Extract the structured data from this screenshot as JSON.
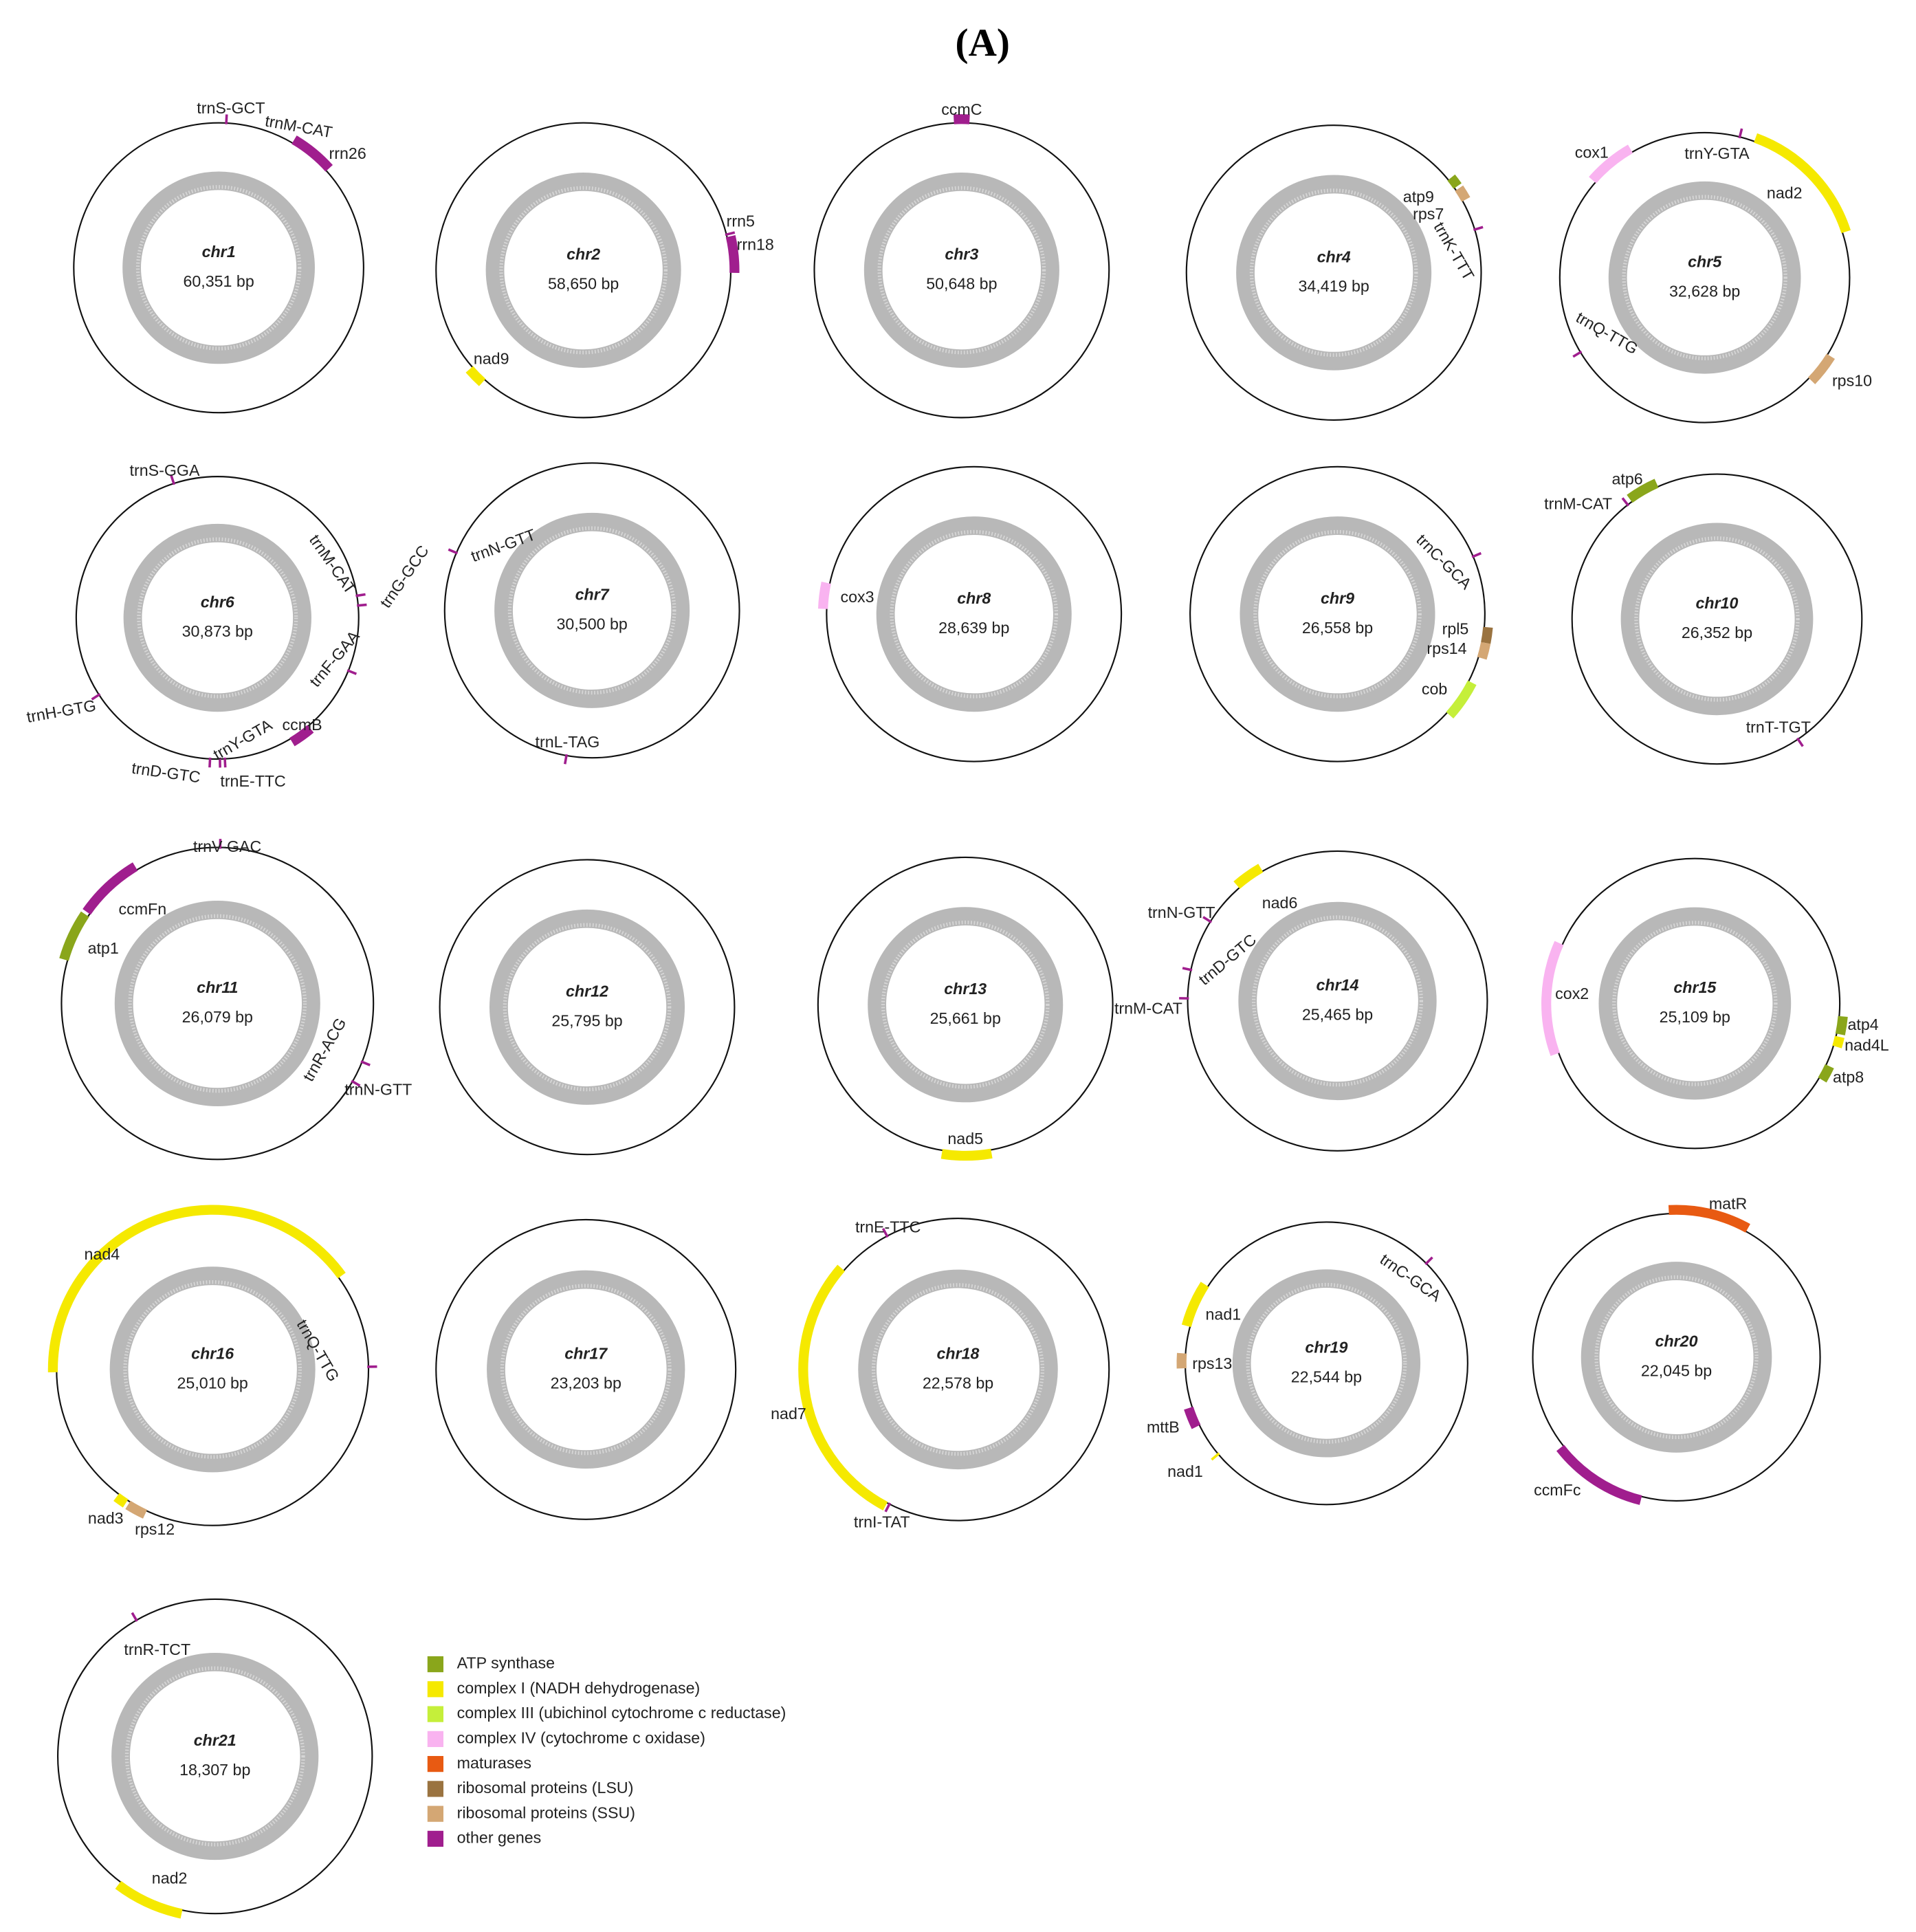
{
  "title": "(A)",
  "chromosomes": [
    {
      "name": "chr1",
      "size": "60,351 bp",
      "genes": [
        {
          "label": "trnS-GCT",
          "color": "#a01e8e"
        },
        {
          "label": "trnM-CAT",
          "color": "#a01e8e"
        },
        {
          "label": "rrn26",
          "color": "#a01e8e"
        }
      ]
    },
    {
      "name": "chr2",
      "size": "58,650 bp",
      "genes": [
        {
          "label": "rrn5",
          "color": "#a01e8e"
        },
        {
          "label": "rrn18",
          "color": "#a01e8e"
        },
        {
          "label": "nad9",
          "color": "#f5e900"
        }
      ]
    },
    {
      "name": "chr3",
      "size": "50,648 bp",
      "genes": [
        {
          "label": "ccmC",
          "color": "#a01e8e"
        }
      ]
    },
    {
      "name": "chr4",
      "size": "34,419 bp",
      "genes": [
        {
          "label": "atp9",
          "color": "#8aa61b"
        },
        {
          "label": "rps7",
          "color": "#d4a774"
        },
        {
          "label": "trnK-TTT",
          "color": "#a01e8e"
        }
      ]
    },
    {
      "name": "chr5",
      "size": "32,628 bp",
      "genes": [
        {
          "label": "cox1",
          "color": "#f9b3f0"
        },
        {
          "label": "trnY-GTA",
          "color": "#a01e8e"
        },
        {
          "label": "nad2",
          "color": "#f5e900"
        },
        {
          "label": "trnQ-TTG",
          "color": "#a01e8e"
        },
        {
          "label": "rps10",
          "color": "#d4a774"
        }
      ]
    },
    {
      "name": "chr6",
      "size": "30,873 bp",
      "genes": [
        {
          "label": "trnS-GGA",
          "color": "#a01e8e"
        },
        {
          "label": "trnM-CAT",
          "color": "#a01e8e"
        },
        {
          "label": "trnG-GCC",
          "color": "#a01e8e"
        },
        {
          "label": "trnF-GAA",
          "color": "#a01e8e"
        },
        {
          "label": "trnH-GTG",
          "color": "#a01e8e"
        },
        {
          "label": "trnY-GTA",
          "color": "#a01e8e"
        },
        {
          "label": "trnD-GTC",
          "color": "#a01e8e"
        },
        {
          "label": "trnE-TTC",
          "color": "#a01e8e"
        },
        {
          "label": "ccmB",
          "color": "#a01e8e"
        }
      ]
    },
    {
      "name": "chr7",
      "size": "30,500 bp",
      "genes": [
        {
          "label": "trnN-GTT",
          "color": "#a01e8e"
        },
        {
          "label": "trnL-TAG",
          "color": "#a01e8e"
        }
      ]
    },
    {
      "name": "chr8",
      "size": "28,639 bp",
      "genes": [
        {
          "label": "cox3",
          "color": "#f9b3f0"
        }
      ]
    },
    {
      "name": "chr9",
      "size": "26,558 bp",
      "genes": [
        {
          "label": "trnC-GCA",
          "color": "#a01e8e"
        },
        {
          "label": "rpl5",
          "color": "#9a7340"
        },
        {
          "label": "rps14",
          "color": "#d4a774"
        },
        {
          "label": "cob",
          "color": "#c5ef3a"
        }
      ]
    },
    {
      "name": "chr10",
      "size": "26,352 bp",
      "genes": [
        {
          "label": "trnM-CAT",
          "color": "#a01e8e"
        },
        {
          "label": "atp6",
          "color": "#8aa61b"
        },
        {
          "label": "trnT-TGT",
          "color": "#a01e8e"
        }
      ]
    },
    {
      "name": "chr11",
      "size": "26,079 bp",
      "genes": [
        {
          "label": "trnV-GAC",
          "color": "#a01e8e"
        },
        {
          "label": "ccmFn",
          "color": "#a01e8e"
        },
        {
          "label": "atp1",
          "color": "#8aa61b"
        },
        {
          "label": "trnR-ACG",
          "color": "#a01e8e"
        },
        {
          "label": "trnN-GTT",
          "color": "#a01e8e"
        }
      ]
    },
    {
      "name": "chr12",
      "size": "25,795 bp",
      "genes": []
    },
    {
      "name": "chr13",
      "size": "25,661 bp",
      "genes": [
        {
          "label": "nad5",
          "color": "#f5e900"
        }
      ]
    },
    {
      "name": "chr14",
      "size": "25,465 bp",
      "genes": [
        {
          "label": "nad6",
          "color": "#f5e900"
        },
        {
          "label": "trnN-GTT",
          "color": "#a01e8e"
        },
        {
          "label": "trnD-GTC",
          "color": "#a01e8e"
        },
        {
          "label": "trnM-CAT",
          "color": "#a01e8e"
        }
      ]
    },
    {
      "name": "chr15",
      "size": "25,109 bp",
      "genes": [
        {
          "label": "cox2",
          "color": "#f9b3f0"
        },
        {
          "label": "atp4",
          "color": "#8aa61b"
        },
        {
          "label": "nad4L",
          "color": "#f5e900"
        },
        {
          "label": "atp8",
          "color": "#8aa61b"
        }
      ]
    },
    {
      "name": "chr16",
      "size": "25,010 bp",
      "genes": [
        {
          "label": "nad4",
          "color": "#f5e900"
        },
        {
          "label": "trnQ-TTG",
          "color": "#a01e8e"
        },
        {
          "label": "nad3",
          "color": "#f5e900"
        },
        {
          "label": "rps12",
          "color": "#d4a774"
        }
      ]
    },
    {
      "name": "chr17",
      "size": "23,203 bp",
      "genes": []
    },
    {
      "name": "chr18",
      "size": "22,578 bp",
      "genes": [
        {
          "label": "trnE-TTC",
          "color": "#a01e8e"
        },
        {
          "label": "nad7",
          "color": "#f5e900"
        },
        {
          "label": "trnI-TAT",
          "color": "#a01e8e"
        }
      ]
    },
    {
      "name": "chr19",
      "size": "22,544 bp",
      "genes": [
        {
          "label": "trnC-GCA",
          "color": "#a01e8e"
        },
        {
          "label": "nad1",
          "color": "#f5e900"
        },
        {
          "label": "rps13",
          "color": "#d4a774"
        },
        {
          "label": "mttB",
          "color": "#a01e8e"
        },
        {
          "label": "nad1",
          "color": "#f5e900"
        }
      ]
    },
    {
      "name": "chr20",
      "size": "22,045 bp",
      "genes": [
        {
          "label": "matR",
          "color": "#e85a12"
        },
        {
          "label": "ccmFc",
          "color": "#a01e8e"
        }
      ]
    },
    {
      "name": "chr21",
      "size": "18,307 bp",
      "genes": [
        {
          "label": "trnR-TCT",
          "color": "#a01e8e"
        },
        {
          "label": "nad2",
          "color": "#f5e900"
        }
      ]
    }
  ],
  "legend": [
    {
      "label": "ATP synthase",
      "color": "#8aa61b"
    },
    {
      "label": "complex I (NADH dehydrogenase)",
      "color": "#f5e900"
    },
    {
      "label": "complex III (ubichinol cytochrome c reductase)",
      "color": "#c5ef3a"
    },
    {
      "label": "complex IV (cytochrome c oxidase)",
      "color": "#f9b3f0"
    },
    {
      "label": "maturases",
      "color": "#e85a12"
    },
    {
      "label": "ribosomal proteins (LSU)",
      "color": "#9a7340"
    },
    {
      "label": "ribosomal proteins (SSU)",
      "color": "#d4a774"
    },
    {
      "label": "other genes",
      "color": "#a01e8e"
    }
  ]
}
